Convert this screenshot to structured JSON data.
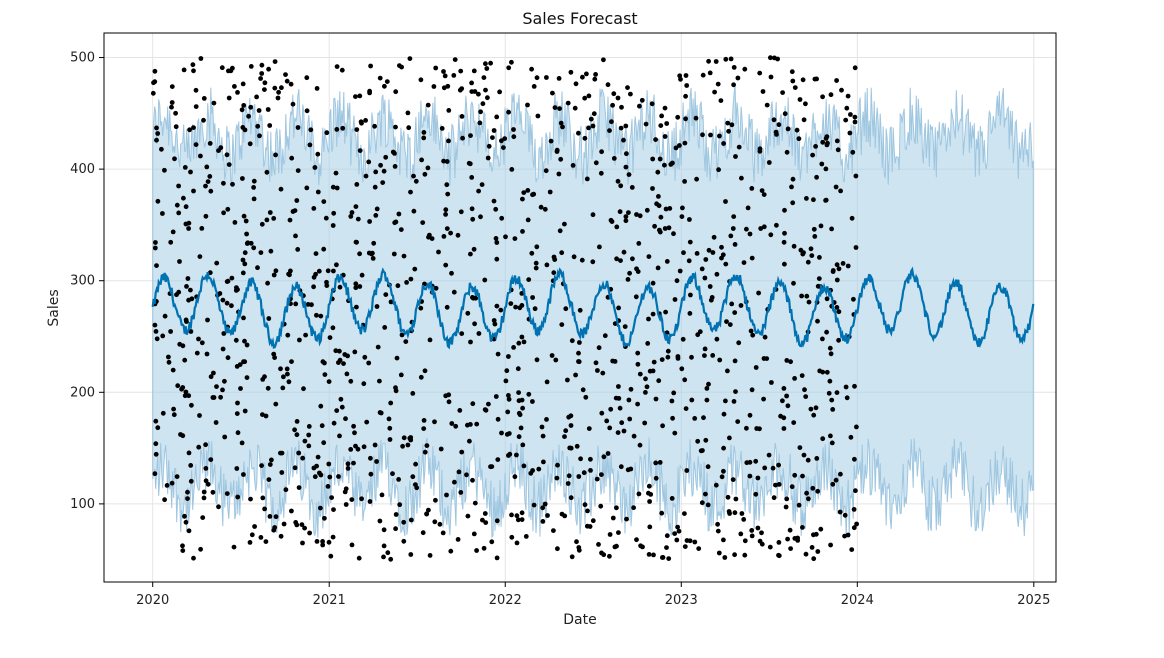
{
  "chart_data": {
    "type": "scatter",
    "title": "Sales Forecast",
    "xlabel": "Date",
    "ylabel": "Sales",
    "xlim": [
      "2019-09-22",
      "2025-02-16"
    ],
    "ylim": [
      30,
      522
    ],
    "x_ticks": [
      "2020",
      "2021",
      "2022",
      "2023",
      "2024",
      "2025"
    ],
    "y_ticks": [
      100,
      200,
      300,
      400,
      500
    ],
    "grid": true,
    "legend": "none",
    "observed_range": [
      "2020-01-01",
      "2023-12-31"
    ],
    "forecast_range": [
      "2020-01-01",
      "2024-12-31"
    ],
    "series": [
      {
        "kind": "observed_points",
        "color": "#000000",
        "y_min": 50,
        "y_max": 500
      },
      {
        "kind": "forecast_line",
        "color": "#0072b2",
        "center": 275,
        "amplitude": 25
      },
      {
        "kind": "uncertainty_interval",
        "color": "#a6cee3",
        "lower_approx": 115,
        "upper_approx": 430
      }
    ]
  }
}
